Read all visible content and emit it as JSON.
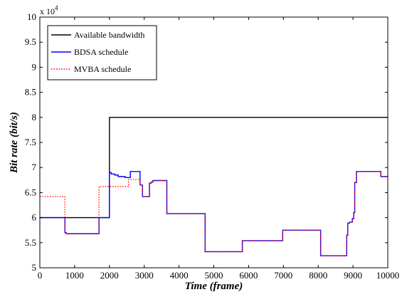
{
  "chart_data": {
    "type": "line",
    "xlabel": "Time (frame)",
    "ylabel": "Bit rate (bit/s)",
    "xlim": [
      0,
      10000
    ],
    "ylim": [
      50000,
      100000
    ],
    "x_ticks": [
      0,
      1000,
      2000,
      3000,
      4000,
      5000,
      6000,
      7000,
      8000,
      9000,
      10000
    ],
    "x_tick_labels": [
      "0",
      "1000",
      "2000",
      "3000",
      "4000",
      "5000",
      "6000",
      "7000",
      "8000",
      "9000",
      "10000"
    ],
    "y_ticks": [
      50000,
      55000,
      60000,
      65000,
      70000,
      75000,
      80000,
      85000,
      90000,
      95000,
      100000
    ],
    "y_tick_labels": [
      "5",
      "5.5",
      "6",
      "6.5",
      "7",
      "7.5",
      "8",
      "8.5",
      "9",
      "9.5",
      "10"
    ],
    "y_exponent_base": "x 10",
    "y_exponent_power": "4",
    "grid": false,
    "legend_position": "top-left",
    "series": [
      {
        "name": "Available bandwidth",
        "color": "#000000",
        "style": "solid",
        "x": [
          0,
          2000,
          2000,
          10000
        ],
        "y": [
          60000,
          60000,
          80000,
          80000
        ]
      },
      {
        "name": "BDSA schedule",
        "color": "#0000ff",
        "style": "solid",
        "x": [
          0,
          720,
          720,
          760,
          760,
          1700,
          1700,
          2000,
          2000,
          2050,
          2050,
          2150,
          2150,
          2250,
          2250,
          2450,
          2450,
          2600,
          2600,
          2880,
          2880,
          2950,
          2950,
          3150,
          3150,
          3200,
          3200,
          3250,
          3250,
          3650,
          3650,
          4750,
          4750,
          5820,
          5820,
          6980,
          6980,
          8070,
          8070,
          8820,
          8820,
          8850,
          8850,
          8900,
          8900,
          8980,
          8980,
          9020,
          9020,
          9050,
          9050,
          9100,
          9100,
          9800,
          9800,
          10000
        ],
        "y": [
          60000,
          60000,
          57000,
          57000,
          56800,
          56800,
          60000,
          60000,
          69000,
          69000,
          68700,
          68700,
          68500,
          68500,
          68200,
          68200,
          68000,
          68000,
          69200,
          69200,
          66500,
          66500,
          64200,
          64200,
          66900,
          66900,
          67100,
          67100,
          67400,
          67400,
          60800,
          60800,
          53200,
          53200,
          55400,
          55400,
          57500,
          57500,
          52400,
          52400,
          56500,
          56500,
          58900,
          58900,
          59100,
          59100,
          59800,
          59800,
          61000,
          61000,
          67000,
          67000,
          69200,
          69200,
          68200,
          68200
        ]
      },
      {
        "name": "MVBA schedule",
        "color": "#ff0000",
        "style": "dotted",
        "x": [
          0,
          720,
          720,
          760,
          760,
          1700,
          1700,
          2550,
          2550,
          2880,
          2880,
          2950,
          2950,
          3150,
          3150,
          3200,
          3200,
          3250,
          3250,
          3650,
          3650,
          4750,
          4750,
          5820,
          5820,
          6980,
          6980,
          8070,
          8070,
          8820,
          8820,
          8850,
          8850,
          8900,
          8900,
          8980,
          8980,
          9020,
          9020,
          9050,
          9050,
          9100,
          9100,
          9800,
          9800,
          10000
        ],
        "y": [
          64200,
          64200,
          57000,
          57000,
          56800,
          56800,
          66200,
          66200,
          67600,
          67600,
          66500,
          66500,
          64200,
          64200,
          66900,
          66900,
          67100,
          67100,
          67400,
          67400,
          60800,
          60800,
          53200,
          53200,
          55400,
          55400,
          57500,
          57500,
          52400,
          52400,
          56500,
          56500,
          58900,
          58900,
          59100,
          59100,
          59800,
          59800,
          61000,
          61000,
          67000,
          67000,
          69200,
          69200,
          68200,
          68200
        ]
      }
    ]
  }
}
